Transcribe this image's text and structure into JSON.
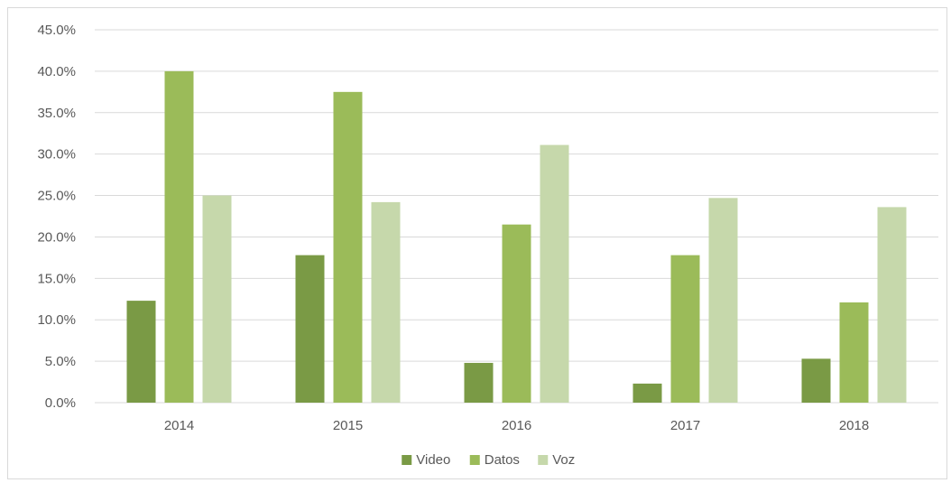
{
  "chart_data": {
    "type": "bar",
    "categories": [
      "2014",
      "2015",
      "2016",
      "2017",
      "2018"
    ],
    "series": [
      {
        "name": "Video",
        "values": [
          12.3,
          17.8,
          4.8,
          2.3,
          5.3
        ],
        "color": "#7a9a45"
      },
      {
        "name": "Datos",
        "values": [
          40.0,
          37.5,
          21.5,
          17.8,
          12.1
        ],
        "color": "#9bbb59"
      },
      {
        "name": "Voz",
        "values": [
          25.0,
          24.2,
          31.1,
          24.7,
          23.6
        ],
        "color": "#c6d8ab"
      }
    ],
    "ylim": [
      0,
      45
    ],
    "yticks": [
      0,
      5,
      10,
      15,
      20,
      25,
      30,
      35,
      40,
      45
    ],
    "ytick_labels": [
      "0.0%",
      "5.0%",
      "10.0%",
      "15.0%",
      "20.0%",
      "25.0%",
      "30.0%",
      "35.0%",
      "40.0%",
      "45.0%"
    ],
    "grid": true,
    "legend_position": "bottom",
    "gridline_color": "#d9d9d9",
    "title": "",
    "xlabel": "",
    "ylabel": ""
  }
}
